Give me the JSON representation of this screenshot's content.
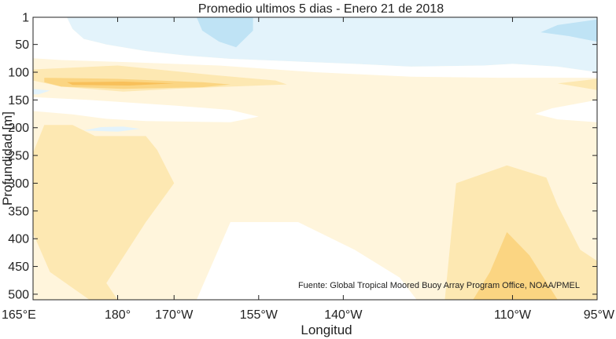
{
  "chart_data": {
    "type": "heatmap",
    "title": "Promedio ultimos 5 dias - Enero 21 de 2018",
    "xlabel": "Longitud",
    "ylabel": "Profundidad [m]",
    "source": "Fuente: Global Tropical Moored Buoy Array Program Office, NOAA/PMEL",
    "x_ticks": [
      {
        "value": 165,
        "label": "165°E"
      },
      {
        "value": 180,
        "label": "180°"
      },
      {
        "value": 190,
        "label": "170°W"
      },
      {
        "value": 205,
        "label": "155°W"
      },
      {
        "value": 220,
        "label": "140°W"
      },
      {
        "value": 250,
        "label": "110°W"
      },
      {
        "value": 265,
        "label": "95°W"
      }
    ],
    "y_ticks": [
      1,
      50,
      100,
      150,
      200,
      250,
      300,
      350,
      400,
      450,
      500
    ],
    "xlim": [
      165,
      265
    ],
    "ylim": [
      510,
      1
    ],
    "colors": {
      "neg2": "#bfe3f5",
      "neg1": "#e3f3fb",
      "zero": "#ffffff",
      "pos1": "#fff5dc",
      "pos2": "#fde8b2",
      "pos3": "#fbd582",
      "pos4": "#f8c05a"
    },
    "regions": [
      {
        "level": "pos1",
        "points": [
          [
            165,
            1
          ],
          [
            265,
            1
          ],
          [
            265,
            510
          ],
          [
            165,
            510
          ]
        ]
      },
      {
        "level": "neg1",
        "points": [
          [
            171,
            1
          ],
          [
            265,
            1
          ],
          [
            265,
            100
          ],
          [
            258,
            90
          ],
          [
            250,
            85
          ],
          [
            245,
            88
          ],
          [
            232,
            90
          ],
          [
            222,
            85
          ],
          [
            210,
            80
          ],
          [
            200,
            76
          ],
          [
            192,
            70
          ],
          [
            185,
            62
          ],
          [
            178,
            50
          ],
          [
            174,
            40
          ],
          [
            172,
            22
          ]
        ]
      },
      {
        "level": "zero",
        "points": [
          [
            165,
            1
          ],
          [
            171,
            1
          ],
          [
            172,
            22
          ],
          [
            174,
            40
          ],
          [
            178,
            50
          ],
          [
            185,
            62
          ],
          [
            192,
            70
          ],
          [
            200,
            76
          ],
          [
            210,
            80
          ],
          [
            222,
            85
          ],
          [
            232,
            90
          ],
          [
            245,
            88
          ],
          [
            250,
            85
          ],
          [
            258,
            90
          ],
          [
            265,
            100
          ],
          [
            265,
            110
          ],
          [
            248,
            110
          ],
          [
            232,
            108
          ],
          [
            215,
            100
          ],
          [
            198,
            88
          ],
          [
            182,
            82
          ],
          [
            170,
            78
          ],
          [
            165,
            75
          ]
        ]
      },
      {
        "level": "zero",
        "points": [
          [
            165,
            145
          ],
          [
            175,
            150
          ],
          [
            190,
            160
          ],
          [
            200,
            168
          ],
          [
            205,
            180
          ],
          [
            200,
            190
          ],
          [
            185,
            188
          ],
          [
            178,
            184
          ],
          [
            172,
            176
          ],
          [
            165,
            170
          ]
        ]
      },
      {
        "level": "zero",
        "points": [
          [
            265,
            150
          ],
          [
            257,
            165
          ],
          [
            254,
            175
          ],
          [
            258,
            185
          ],
          [
            265,
            190
          ]
        ]
      },
      {
        "level": "zero",
        "points": [
          [
            194,
            510
          ],
          [
            200,
            370
          ],
          [
            212,
            370
          ],
          [
            222,
            420
          ],
          [
            230,
            470
          ],
          [
            233,
            510
          ]
        ]
      },
      {
        "level": "neg2",
        "points": [
          [
            194,
            1
          ],
          [
            204,
            1
          ],
          [
            204,
            25
          ],
          [
            201,
            55
          ],
          [
            198,
            45
          ],
          [
            195,
            25
          ]
        ]
      },
      {
        "level": "neg2",
        "points": [
          [
            258,
            15
          ],
          [
            265,
            5
          ],
          [
            265,
            45
          ],
          [
            260,
            35
          ],
          [
            255,
            28
          ]
        ]
      },
      {
        "level": "neg1",
        "points": [
          [
            165,
            130
          ],
          [
            168,
            133
          ],
          [
            166,
            140
          ],
          [
            165,
            140
          ]
        ]
      },
      {
        "level": "neg1",
        "points": [
          [
            174,
            205
          ],
          [
            177,
            199
          ],
          [
            181,
            198
          ],
          [
            184,
            202
          ],
          [
            180,
            207
          ]
        ]
      },
      {
        "level": "pos2",
        "points": [
          [
            165,
            95
          ],
          [
            180,
            88
          ],
          [
            197,
            105
          ],
          [
            208,
            115
          ],
          [
            210,
            122
          ],
          [
            200,
            126
          ],
          [
            190,
            130
          ],
          [
            181,
            135
          ],
          [
            170,
            126
          ],
          [
            165,
            115
          ]
        ]
      },
      {
        "level": "pos2",
        "points": [
          [
            258,
            120
          ],
          [
            265,
            112
          ],
          [
            265,
            132
          ]
        ]
      },
      {
        "level": "pos2",
        "points": [
          [
            165,
            245
          ],
          [
            167,
            195
          ],
          [
            172,
            195
          ],
          [
            176,
            215
          ],
          [
            185,
            215
          ],
          [
            187,
            240
          ],
          [
            190,
            300
          ],
          [
            185,
            370
          ],
          [
            178,
            480
          ],
          [
            180,
            510
          ],
          [
            175,
            510
          ],
          [
            168,
            460
          ],
          [
            165,
            390
          ]
        ]
      },
      {
        "level": "pos2",
        "points": [
          [
            238,
            510
          ],
          [
            240,
            300
          ],
          [
            249,
            268
          ],
          [
            256,
            290
          ],
          [
            258,
            340
          ],
          [
            262,
            420
          ],
          [
            265,
            440
          ],
          [
            265,
            510
          ]
        ]
      },
      {
        "level": "pos3",
        "points": [
          [
            167,
            110
          ],
          [
            180,
            112
          ],
          [
            195,
            118
          ],
          [
            200,
            122
          ],
          [
            195,
            127
          ],
          [
            181,
            130
          ],
          [
            170,
            126
          ],
          [
            167,
            118
          ]
        ]
      },
      {
        "level": "pos3",
        "points": [
          [
            243,
            510
          ],
          [
            246,
            460
          ],
          [
            249,
            388
          ],
          [
            253,
            430
          ],
          [
            258,
            510
          ]
        ]
      },
      {
        "level": "pos4",
        "points": [
          [
            171,
            118
          ],
          [
            181,
            117
          ],
          [
            190,
            120
          ],
          [
            182,
            124
          ],
          [
            172,
            123
          ]
        ]
      }
    ]
  }
}
